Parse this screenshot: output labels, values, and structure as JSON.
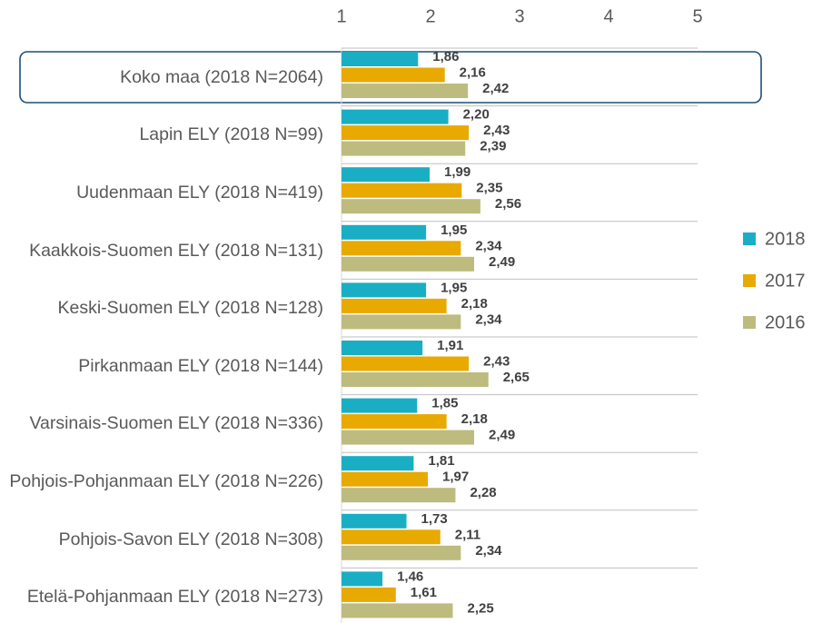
{
  "chart_data": {
    "type": "barh",
    "categories": [
      "Koko maa (2018 N=2064)",
      "Lapin ELY (2018 N=99)",
      "Uudenmaan ELY (2018 N=419)",
      "Kaakkois-Suomen ELY (2018 N=131)",
      "Keski-Suomen ELY (2018 N=128)",
      "Pirkanmaan ELY (2018 N=144)",
      "Varsinais-Suomen ELY (2018 N=336)",
      "Pohjois-Pohjanmaan ELY (2018 N=226)",
      "Pohjois-Savon ELY (2018 N=308)",
      "Etelä-Pohjanmaan ELY (2018 N=273)"
    ],
    "series": [
      {
        "name": "2018",
        "color": "#1aaec4",
        "values": [
          1.86,
          2.2,
          1.99,
          1.95,
          1.95,
          1.91,
          1.85,
          1.81,
          1.73,
          1.46
        ],
        "value_labels": [
          "1,86",
          "2,20",
          "1,99",
          "1,95",
          "1,95",
          "1,91",
          "1,85",
          "1,81",
          "1,73",
          "1,46"
        ]
      },
      {
        "name": "2017",
        "color": "#e8a900",
        "values": [
          2.16,
          2.43,
          2.35,
          2.34,
          2.18,
          2.43,
          2.18,
          1.97,
          2.11,
          1.61
        ],
        "value_labels": [
          "2,16",
          "2,43",
          "2,35",
          "2,34",
          "2,18",
          "2,43",
          "2,18",
          "1,97",
          "2,11",
          "1,61"
        ]
      },
      {
        "name": "2016",
        "color": "#bdbb7e",
        "values": [
          2.42,
          2.39,
          2.56,
          2.49,
          2.34,
          2.65,
          2.49,
          2.28,
          2.34,
          2.25
        ],
        "value_labels": [
          "2,42",
          "2,39",
          "2,56",
          "2,49",
          "2,34",
          "2,65",
          "2,49",
          "2,28",
          "2,34",
          "2,25"
        ]
      }
    ],
    "xlim": [
      1,
      5
    ],
    "xticks": [
      1,
      2,
      3,
      4,
      5
    ],
    "legend": "right"
  }
}
